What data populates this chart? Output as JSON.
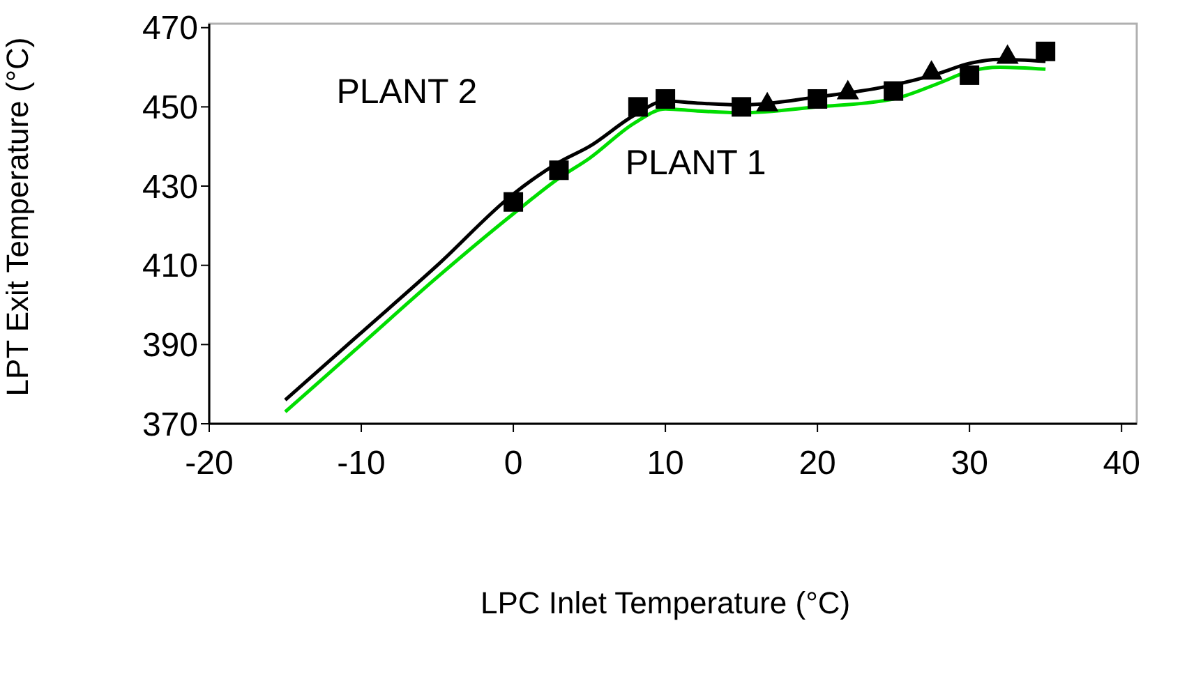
{
  "chart_data": {
    "type": "line",
    "xlabel": "LPC Inlet Temperature  (°C)",
    "ylabel": "LPT Exit Temperature (°C)",
    "xlim": [
      -20,
      41
    ],
    "xticks": [
      -20,
      -10,
      0,
      10,
      20,
      30,
      40
    ],
    "ylim": [
      370,
      471
    ],
    "yticks": [
      370,
      390,
      410,
      430,
      450,
      470
    ],
    "grid": false,
    "series": [
      {
        "name": "PLANT 2",
        "color": "#000000",
        "x": [
          -15,
          -10,
          -5,
          0,
          3,
          5,
          8,
          10,
          12,
          15,
          20,
          25,
          28,
          30,
          32,
          35
        ],
        "values": [
          376,
          393,
          410,
          428,
          436,
          440,
          448,
          451.5,
          451,
          450.5,
          452.5,
          455.5,
          458.5,
          461,
          462,
          461.5
        ]
      },
      {
        "name": "PLANT 1",
        "color": "#00dd00",
        "x": [
          -15,
          -10,
          -5,
          0,
          3,
          5,
          8,
          10,
          12,
          15,
          20,
          25,
          28,
          30,
          32,
          35
        ],
        "values": [
          373,
          390,
          407,
          423,
          432,
          437,
          446,
          449.5,
          449,
          448.5,
          450,
          452,
          456,
          459,
          460,
          459.5
        ]
      },
      {
        "color": "#000000",
        "type": "scatter",
        "marker": "square",
        "x": [
          0,
          3,
          8.2,
          10,
          15,
          20,
          25,
          30,
          35
        ],
        "values": [
          426,
          434,
          450,
          452,
          450,
          452,
          454,
          458,
          464
        ]
      },
      {
        "color": "#000000",
        "type": "scatter",
        "marker": "triangle",
        "x": [
          16.7,
          22,
          27.5,
          32.5
        ],
        "values": [
          451,
          454,
          459,
          463
        ]
      }
    ]
  }
}
